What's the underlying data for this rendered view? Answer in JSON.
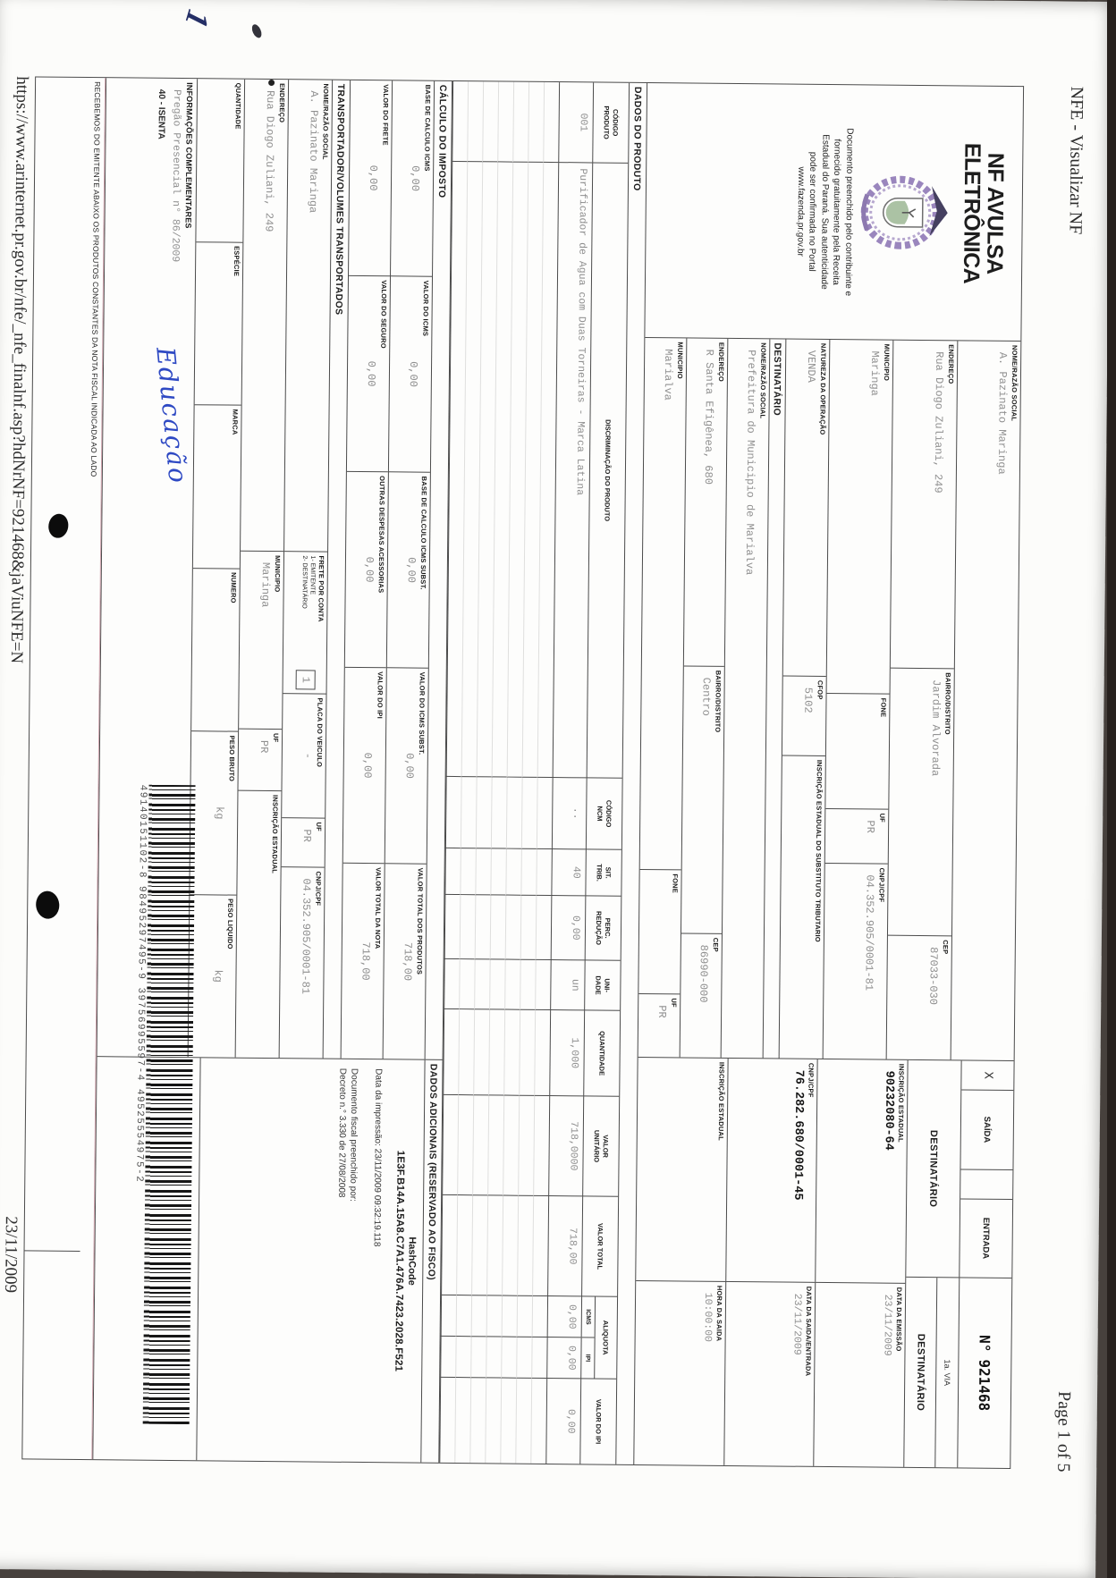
{
  "print": {
    "header_left": "NFE - Visualizar NF",
    "header_right": "Page 1 of 5",
    "footer_url": "https://www.arinternet.pr.gov.br/nfe/_nfe_finalnf.asp?hdNrNF=921468&jaViuNFE=N",
    "footer_date": "23/11/2009"
  },
  "annotations": {
    "pen_mark": "1",
    "note": "Educação"
  },
  "title": {
    "line1": "NF AVULSA",
    "line2": "ELETRÔNICA",
    "emblem_icon": "parana-coat-of-arms-icon",
    "notice": "Documento preenchido pelo contribuinte e fornecido gratuitamente pela Receita Estadual do Paraná. Sua autenticidade pode ser confirmada no Portal www.fazenda.pr.gov.br"
  },
  "emitente": {
    "nome_label": "NOME/RAZÃO SOCIAL",
    "nome": "A. Pazinato Maringa",
    "endereco_label": "ENDEREÇO",
    "endereco": "Rua Diogo Zuliani, 249",
    "bairro_label": "BAIRRO/DISTRITO",
    "bairro": "Jardim Alvorada",
    "cep_label": "CEP",
    "cep": "87033-030",
    "municipio_label": "MUNICIPIO",
    "municipio": "Maringa",
    "fone_label": "FONE",
    "fone": "",
    "uf_label": "UF",
    "uf": "PR",
    "cnpj_label": "CNPJ/CPF",
    "cnpj": "04.352.905/0001-81"
  },
  "operacao": {
    "x_mark": "X",
    "saida": "SAÍDA",
    "entrada": "ENTRADA",
    "destinatario_tag": "DESTINATÁRIO",
    "numero_label": "N°",
    "numero": "921468",
    "via": "1a. VIA",
    "natureza_label": "NATUREZA DA OPERAÇÃO",
    "natureza": "VENDA",
    "cfop_label": "CFOP",
    "cfop": "5102",
    "ie_subst_label": "INSCRIÇÃO ESTADUAL DO SUBSTITUTO TRIBUTARIO",
    "ie_subst": "",
    "ie_label": "INSCRIÇÃO ESTADUAL",
    "ie": "90232080-64"
  },
  "datas": {
    "emissao_label": "DATA DA EMISSÃO",
    "emissao": "23/11/2009",
    "saida_label": "DATA DA SAIDA/ENTRADA",
    "saida": "23/11/2009",
    "hora_label": "HORA DA SAIDA",
    "hora": "10:00:00"
  },
  "destinatario": {
    "section": "DESTINATÁRIO",
    "nome_label": "NOME/RAZÃO SOCIAL",
    "nome": "Prefeitura do Municipio de Marialva",
    "cnpj_label": "CNPJ/CPF",
    "cnpj": "76.282.680/0001-45",
    "endereco_label": "ENDEREÇO",
    "endereco": "R Santa Efigênea, 680",
    "bairro_label": "BAIRRO/DISTRITO",
    "bairro": "Centro",
    "cep_label": "CEP",
    "cep": "86990-000",
    "municipio_label": "MUNICIPIO",
    "municipio": "Marialva",
    "fone_label": "FONE",
    "fone": "",
    "uf_label": "UF",
    "uf": "PR",
    "ie_label": "INSCRIÇÃO ESTADUAL",
    "ie": ""
  },
  "produtos": {
    "section": "DADOS DO PRODUTO",
    "h_codigo": "CÓDIGO\nPRODUTO",
    "h_discriminacao": "DISCRIMINAÇÃO DO PRODUTO",
    "h_ncm": "CÓDIGO\nNCM",
    "h_sit": "SIT.\nTRIB.",
    "h_perc": "PERC.\nREDUÇÃO",
    "h_unidade": "UNI-\nDADE",
    "h_quantidade": "QUANTIDADE",
    "h_v_unitario": "VALOR\nUNITÁRIO",
    "h_v_total": "VALOR TOTAL",
    "h_aliquota": "ALIQUOTA",
    "h_icms": "ICMS",
    "h_ipi": "IPI",
    "h_v_ipi": "VALOR DO IPI",
    "empty_rows": 7,
    "item": {
      "codigo": "001",
      "discriminacao": "Purificador de Agua com Duas Torneiras - Marca Latina",
      "ncm": "..",
      "sit": "40",
      "perc": "0,00",
      "unidade": "un",
      "quantidade": "1,000",
      "v_unitario": "718,0000",
      "v_total": "718,00",
      "aliq_icms": "0,00",
      "aliq_ipi": "0,00",
      "v_ipi": "0,00"
    }
  },
  "calculo": {
    "section": "CÁLCULO DO IMPOSTO",
    "base_icms_label": "BASE DE CALCULO ICMS",
    "base_icms": "0,00",
    "v_icms_label": "VALOR DO ICMS",
    "v_icms": "0,00",
    "base_subst_label": "BASE DE CALCULO ICMS SUBST.",
    "base_subst": "0,00",
    "v_subst_label": "VALOR DO ICMS SUBST.",
    "v_subst": "0,00",
    "v_produtos_label": "VALOR TOTAL DOS PRODUTOS",
    "v_produtos": "718,00",
    "frete_label": "VALOR DO FRETE",
    "frete": "0,00",
    "seguro_label": "VALOR DO SEGURO",
    "seguro": "0,00",
    "despesas_label": "OUTRAS DESPESAS ACESSORIAS",
    "despesas": "0,00",
    "v_ipi_label": "VALOR DO IPI",
    "v_ipi": "0,00",
    "v_nota_label": "VALOR TOTAL DA NOTA",
    "v_nota": "718,00"
  },
  "transportador": {
    "section": "TRANSPORTADOR/VOLUMES TRANSPORTADOS",
    "nome_label": "NOME/RAZÃO SOCIAL",
    "nome": "A. Pazinato Maringa",
    "frete_label": "FRETE POR CONTA",
    "frete_opcoes": "1- EMITENTE\n2- DESTINATÁRIO",
    "frete_valor": "1",
    "placa_label": "PLACA DO VEICULO",
    "placa": "-",
    "uf_label": "UF",
    "uf": "PR",
    "cnpj_label": "CNPJ/CPF",
    "cnpj": "04.352.905/0001-81",
    "endereco_label": "ENDEREÇO",
    "endereco": "Rua Diogo Zuliani, 249",
    "municipio_label": "MUNICIPIO",
    "municipio": "Maringa",
    "uf2": "PR",
    "ie_label": "INSCRIÇÃO ESTADUAL",
    "ie": "",
    "quantidade_label": "QUANTIDADE",
    "quantidade": "",
    "especie_label": "ESPÉCIE",
    "especie": "",
    "marca_label": "MARCA",
    "marca": "",
    "numero_label": "NUMERO",
    "numero": "",
    "peso_bruto_label": "PESO BRUTO",
    "peso_bruto": "kg",
    "peso_liquido_label": "PESO LIQUIDO",
    "peso_liquido": "kg"
  },
  "dados_adicionais": {
    "section": "DADOS ADICIONAIS (RESERVADO AO FISCO)",
    "hashcode_label": "HashCode",
    "hashcode": "1E3F.B14A.15A8.C7A1.476A.7423.2028.F521",
    "impressao": "Data da impressão: 23/11/2009 09:32:19.118",
    "preenchido": "Documento fiscal preenchido por:",
    "decreto": "Decreto n.° 3.330 de 27/08/2008"
  },
  "informacoes": {
    "section": "INFORMAÇÕES COMPLEMENTARES",
    "linha1": "Pregão Presencial n° 86/2009",
    "linha2": "40 - ISENTA"
  },
  "barcode": {
    "icon": "barcode-icon",
    "number": "49140151102-8 98495297495-9 39756995597-4 49525554975-2"
  },
  "canhoto": {
    "recebemos": "RECEBEMOS DO EMITENTE ABAIXO OS PRODUTOS CONSTANTES DA NOTA FISCAL INDICADA AO LADO"
  }
}
